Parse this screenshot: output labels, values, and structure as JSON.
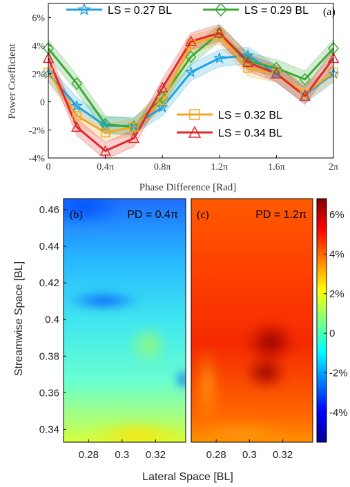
{
  "chart_data": [
    {
      "type": "line",
      "panel_label": "(a)",
      "xlabel": "Phase Difference [Rad]",
      "ylabel": "Power Coefficient",
      "x": [
        0,
        0.2,
        0.4,
        0.6,
        0.8,
        1.0,
        1.2,
        1.4,
        1.6,
        1.8,
        2.0
      ],
      "x_unit": "π",
      "xlim": [
        0,
        2
      ],
      "ylim": [
        -4,
        7
      ],
      "xtick_labels": [
        "0",
        "0.4π",
        "0.8π",
        "1.2π",
        "1.6π",
        "2π"
      ],
      "ytick_labels": [
        "-4%",
        "-2%",
        "0",
        "2%",
        "4%",
        "6%"
      ],
      "ytick_values": [
        -4,
        -2,
        0,
        2,
        4,
        6
      ],
      "grid": false,
      "series": [
        {
          "name": "LS = 0.27 BL",
          "color": "#1fa2e0",
          "marker": "star",
          "values": [
            2.0,
            -0.3,
            -1.7,
            -1.7,
            -0.4,
            2.1,
            3.1,
            3.3,
            2.0,
            0.5,
            2.0
          ],
          "band": 0.6
        },
        {
          "name": "LS = 0.29 BL",
          "color": "#3aaa35",
          "marker": "diamond",
          "values": [
            3.8,
            1.3,
            -1.6,
            -1.8,
            0.3,
            3.2,
            4.9,
            2.9,
            2.4,
            1.6,
            3.8
          ],
          "band": 0.6
        },
        {
          "name": "LS = 0.32 BL",
          "color": "#f5a623",
          "marker": "square",
          "values": [
            2.1,
            -1.0,
            -2.2,
            -1.8,
            0.1,
            4.1,
            4.7,
            2.4,
            2.0,
            0.6,
            2.1
          ],
          "band": 0.6
        },
        {
          "name": "LS = 0.34 BL",
          "color": "#e0282a",
          "marker": "triangle",
          "values": [
            3.1,
            -1.8,
            -3.5,
            -2.6,
            1.0,
            4.3,
            4.9,
            2.8,
            2.0,
            0.4,
            3.1
          ],
          "band": 0.6
        }
      ]
    },
    {
      "type": "heatmap",
      "panel_label": "(b)",
      "annotation": "PD = 0.4π",
      "xlabel": "Lateral Space [BL]",
      "ylabel": "Streamwise Space [BL]",
      "xtick_labels": [
        "0.28",
        "0.3",
        "0.32"
      ],
      "xtick_values": [
        0.28,
        0.3,
        0.32
      ],
      "ytick_labels": [
        "0.46",
        "0.44",
        "0.42",
        "0.4",
        "0.38",
        "0.36",
        "0.34"
      ],
      "ytick_values": [
        0.46,
        0.44,
        0.42,
        0.4,
        0.38,
        0.36,
        0.34
      ],
      "xlim": [
        0.265,
        0.338
      ],
      "ylim": [
        0.333,
        0.466
      ],
      "mean_range": [
        -3.5,
        1.5
      ]
    },
    {
      "type": "heatmap",
      "panel_label": "(c)",
      "annotation": "PD = 1.2π",
      "xtick_labels": [
        "0.28",
        "0.3",
        "0.32"
      ],
      "xtick_values": [
        0.28,
        0.3,
        0.32
      ],
      "xlim": [
        0.265,
        0.338
      ],
      "ylim": [
        0.333,
        0.466
      ],
      "mean_range": [
        3.5,
        6.5
      ]
    }
  ],
  "colorbar": {
    "tick_labels": [
      "6%",
      "4%",
      "2%",
      "0",
      "-2%",
      "-4%"
    ],
    "tick_values": [
      6,
      4,
      2,
      0,
      -2,
      -4
    ],
    "range": [
      -5.5,
      6.8
    ],
    "colors": [
      "#00008f",
      "#0000ff",
      "#0080ff",
      "#00ffff",
      "#80ff80",
      "#ffff00",
      "#ff8000",
      "#ff0000",
      "#800000"
    ]
  }
}
